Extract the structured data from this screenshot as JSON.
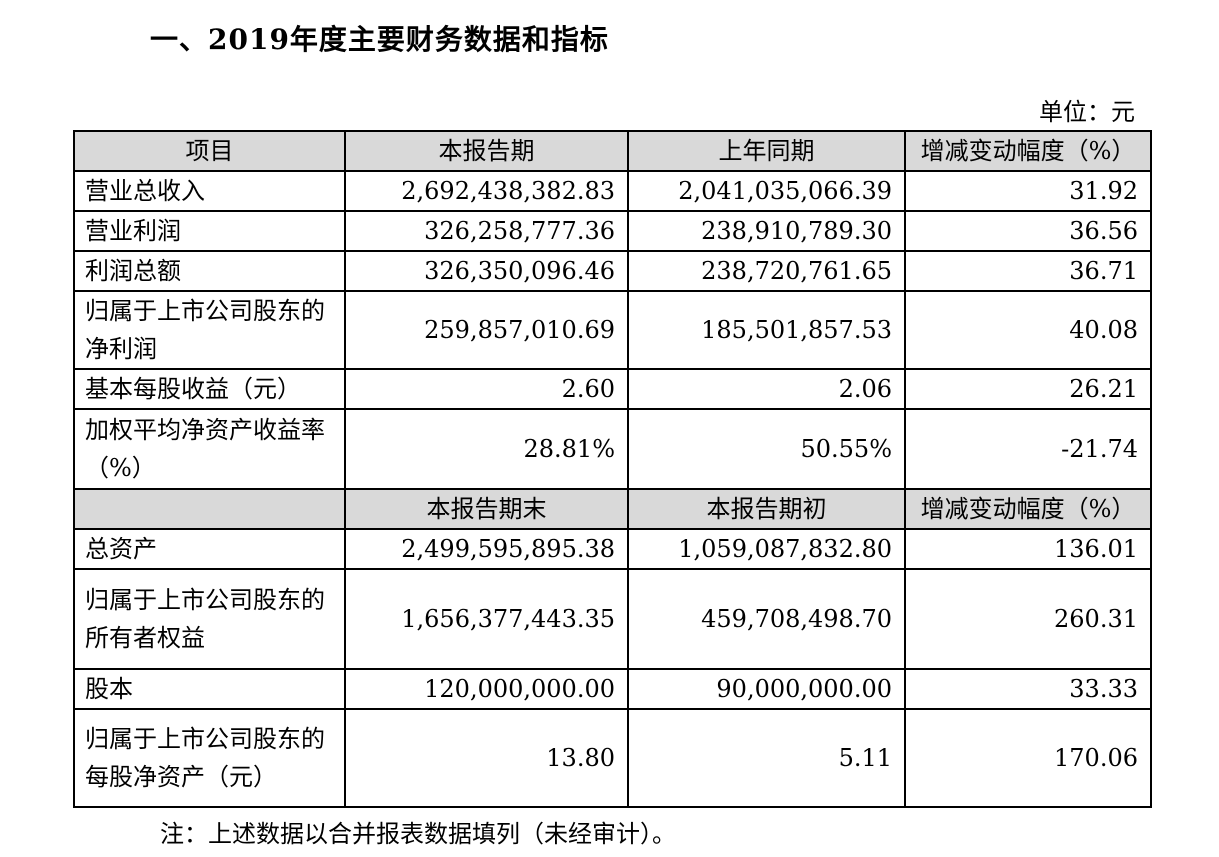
{
  "title": "一、2019年度主要财务数据和指标",
  "unit": "单位：元",
  "header1": [
    "项目",
    "本报告期",
    "上年同期",
    "增减变动幅度（%）"
  ],
  "rows1": [
    {
      "item": "营业总收入",
      "current": "2,692,438,382.83",
      "previous": "2,041,035,066.39",
      "change": "31.92"
    },
    {
      "item": "营业利润",
      "current": "326,258,777.36",
      "previous": "238,910,789.30",
      "change": "36.56"
    },
    {
      "item": "利润总额",
      "current": "326,350,096.46",
      "previous": "238,720,761.65",
      "change": "36.71"
    },
    {
      "item": "归属于上市公司股东的净利润",
      "current": "259,857,010.69",
      "previous": "185,501,857.53",
      "change": "40.08"
    },
    {
      "item": "基本每股收益（元）",
      "current": "2.60",
      "previous": "2.06",
      "change": "26.21"
    },
    {
      "item": "加权平均净资产收益率（%）",
      "current": "28.81%",
      "previous": "50.55%",
      "change": "-21.74"
    }
  ],
  "header2": [
    "",
    "本报告期末",
    "本报告期初",
    "增减变动幅度（%）"
  ],
  "rows2": [
    {
      "item": "总资产",
      "current": "2,499,595,895.38",
      "previous": "1,059,087,832.80",
      "change": "136.01"
    },
    {
      "item": "归属于上市公司股东的所有者权益",
      "current": "1,656,377,443.35",
      "previous": "459,708,498.70",
      "change": "260.31"
    },
    {
      "item": "股本",
      "current": "120,000,000.00",
      "previous": "90,000,000.00",
      "change": "33.33"
    },
    {
      "item": "归属于上市公司股东的每股净资产（元）",
      "current": "13.80",
      "previous": "5.11",
      "change": "170.06"
    }
  ],
  "note": "注：上述数据以合并报表数据填列（未经审计）。"
}
